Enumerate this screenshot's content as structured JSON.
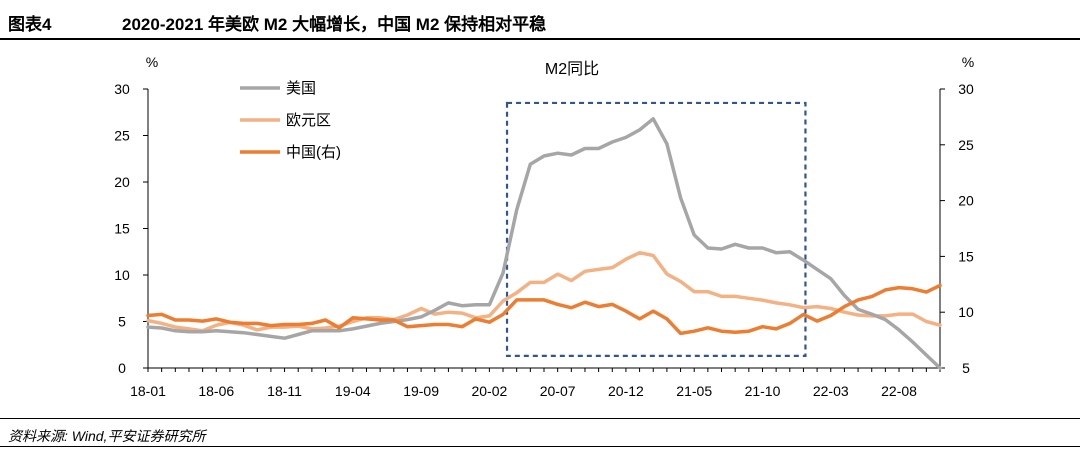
{
  "header": {
    "label": "图表4",
    "title": "2020-2021 年美欧 M2 大幅增长，中国 M2 保持相对平稳"
  },
  "footer": {
    "source": "资料来源: Wind,平安证券研究所"
  },
  "colors": {
    "us": "#a6a6a6",
    "euro": "#f4b183",
    "china": "#ed7d31",
    "highlight_box": "#2f5597"
  },
  "chart_data": {
    "type": "line",
    "title": "M2同比",
    "y_left_unit": "%",
    "y_right_unit": "%",
    "y_left_lim": [
      0,
      30
    ],
    "y_left_ticks": [
      0,
      5,
      10,
      15,
      20,
      25,
      30
    ],
    "y_right_lim": [
      5,
      30
    ],
    "y_right_ticks": [
      5,
      10,
      15,
      20,
      25,
      30
    ],
    "x_tick_labels": [
      "18-01",
      "18-06",
      "18-11",
      "19-04",
      "19-09",
      "20-02",
      "20-07",
      "20-12",
      "21-05",
      "21-10",
      "22-03",
      "22-08"
    ],
    "highlight_range": {
      "x_from": "20-03",
      "x_to": "22-01",
      "y_from": 1.3,
      "y_to": 28.5
    },
    "x": [
      "18-01",
      "18-02",
      "18-03",
      "18-04",
      "18-05",
      "18-06",
      "18-07",
      "18-08",
      "18-09",
      "18-10",
      "18-11",
      "18-12",
      "19-01",
      "19-02",
      "19-03",
      "19-04",
      "19-05",
      "19-06",
      "19-07",
      "19-08",
      "19-09",
      "19-10",
      "19-11",
      "19-12",
      "20-01",
      "20-02",
      "20-03",
      "20-04",
      "20-05",
      "20-06",
      "20-07",
      "20-08",
      "20-09",
      "20-10",
      "20-11",
      "20-12",
      "21-01",
      "21-02",
      "21-03",
      "21-04",
      "21-05",
      "21-06",
      "21-07",
      "21-08",
      "21-09",
      "21-10",
      "21-11",
      "21-12",
      "22-01",
      "22-02",
      "22-03",
      "22-04",
      "22-05",
      "22-06",
      "22-07",
      "22-08",
      "22-09",
      "22-10",
      "22-11"
    ],
    "series": [
      {
        "name": "美国",
        "axis": "left",
        "values": [
          4.4,
          4.3,
          4.0,
          3.9,
          3.9,
          4.0,
          3.9,
          3.8,
          3.6,
          3.4,
          3.2,
          3.6,
          4.0,
          4.0,
          4.0,
          4.2,
          4.5,
          4.8,
          5.0,
          5.2,
          5.5,
          6.2,
          7.0,
          6.7,
          6.8,
          6.8,
          10.2,
          17.0,
          21.9,
          22.8,
          23.1,
          22.9,
          23.6,
          23.6,
          24.3,
          24.8,
          25.6,
          26.8,
          24.1,
          18.3,
          14.3,
          12.9,
          12.8,
          13.3,
          12.9,
          12.9,
          12.4,
          12.5,
          11.6,
          10.6,
          9.6,
          7.8,
          6.3,
          5.8,
          5.2,
          4.1,
          2.8,
          1.4,
          0.0
        ]
      },
      {
        "name": "欧元区",
        "axis": "left",
        "values": [
          5.1,
          4.8,
          4.4,
          4.2,
          4.0,
          4.6,
          4.9,
          4.6,
          4.1,
          4.4,
          4.4,
          4.5,
          4.2,
          4.3,
          4.5,
          5.0,
          5.4,
          5.4,
          5.2,
          5.7,
          6.4,
          5.8,
          6.0,
          5.9,
          5.4,
          5.6,
          7.2,
          8.1,
          9.2,
          9.2,
          10.1,
          9.4,
          10.4,
          10.6,
          10.8,
          11.7,
          12.4,
          12.1,
          10.1,
          9.3,
          8.2,
          8.2,
          7.7,
          7.7,
          7.5,
          7.3,
          7.0,
          6.8,
          6.5,
          6.6,
          6.4,
          6.0,
          5.7,
          5.6,
          5.6,
          5.8,
          5.8,
          5.0,
          4.6
        ]
      },
      {
        "name": "中国(右)",
        "axis": "right",
        "values": [
          9.7,
          9.8,
          9.3,
          9.3,
          9.2,
          9.4,
          9.1,
          9.0,
          9.0,
          8.8,
          8.9,
          8.9,
          9.0,
          9.3,
          8.6,
          9.5,
          9.4,
          9.3,
          9.3,
          8.7,
          8.8,
          8.9,
          8.9,
          8.7,
          9.4,
          9.1,
          9.8,
          11.1,
          11.1,
          11.1,
          10.7,
          10.4,
          10.9,
          10.5,
          10.7,
          10.1,
          9.4,
          10.1,
          9.4,
          8.1,
          8.3,
          8.6,
          8.3,
          8.2,
          8.3,
          8.7,
          8.5,
          9.0,
          9.8,
          9.2,
          9.7,
          10.5,
          11.1,
          11.4,
          12.0,
          12.2,
          12.1,
          11.8,
          12.4
        ]
      }
    ],
    "legend": [
      "美国",
      "欧元区",
      "中国(右)"
    ],
    "legend_placement": "top-left"
  }
}
